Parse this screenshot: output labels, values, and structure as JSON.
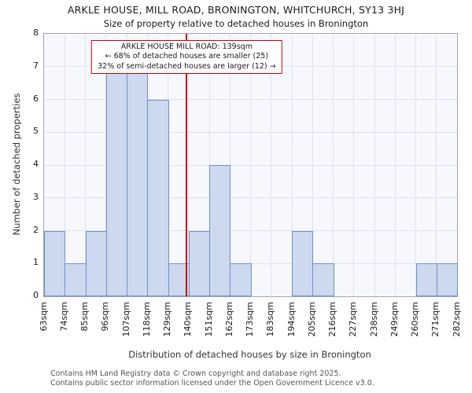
{
  "chart_data": {
    "type": "bar",
    "title": "ARKLE HOUSE, MILL ROAD, BRONINGTON, WHITCHURCH, SY13 3HJ",
    "subtitle": "Size of property relative to detached houses in Bronington",
    "xlabel": "Distribution of detached houses by size in Bronington",
    "ylabel": "Number of detached properties",
    "ylim": [
      0,
      8
    ],
    "yticks": [
      0,
      1,
      2,
      3,
      4,
      5,
      6,
      7,
      8
    ],
    "grid": true,
    "tick_labels": [
      "63sqm",
      "74sqm",
      "85sqm",
      "96sqm",
      "107sqm",
      "118sqm",
      "129sqm",
      "140sqm",
      "151sqm",
      "162sqm",
      "173sqm",
      "183sqm",
      "194sqm",
      "205sqm",
      "216sqm",
      "227sqm",
      "238sqm",
      "249sqm",
      "260sqm",
      "271sqm",
      "282sqm"
    ],
    "bin_edges_sqm": [
      63,
      74,
      85,
      96,
      107,
      118,
      129,
      140,
      151,
      162,
      173,
      183,
      194,
      205,
      216,
      227,
      238,
      249,
      260,
      271,
      282
    ],
    "values": [
      2,
      1,
      2,
      7,
      7,
      6,
      1,
      2,
      4,
      1,
      0,
      0,
      2,
      1,
      0,
      0,
      0,
      0,
      1,
      1
    ],
    "marker": {
      "value_sqm": 139,
      "color": "#cc0000"
    },
    "annotation": {
      "line1": "ARKLE HOUSE MILL ROAD: 139sqm",
      "line2": "← 68% of detached houses are smaller (25)",
      "line3": "32% of semi-detached houses are larger (12) →"
    },
    "colors": {
      "bar_fill": "#cdd9ef",
      "bar_border": "#7090c8",
      "grid": "#dce2f2",
      "marker_line": "#cc0000",
      "plot_background": "#f6f8fd"
    }
  },
  "footer": {
    "line1": "Contains HM Land Registry data © Crown copyright and database right 2025.",
    "line2": "Contains public sector information licensed under the Open Government Licence v3.0."
  }
}
